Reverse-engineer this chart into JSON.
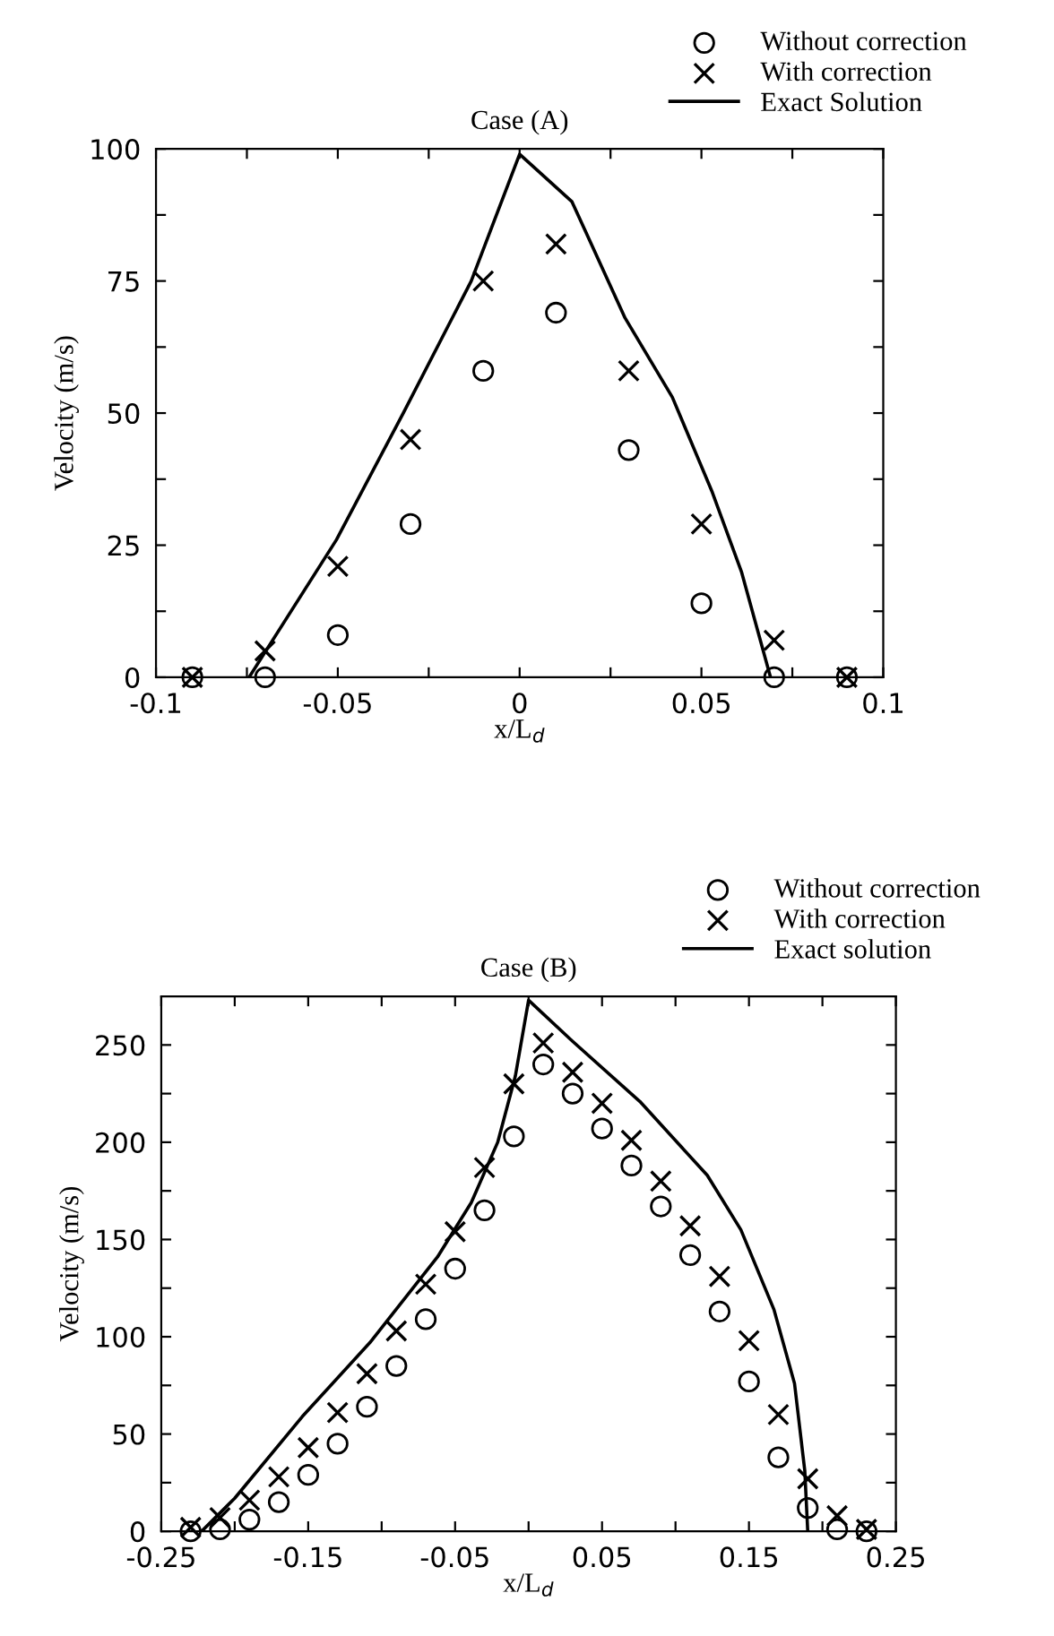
{
  "chart_data": [
    {
      "type": "scatter",
      "title": "Case (A)",
      "xlabel": "x/L$_{d}$",
      "ylabel": "Velocity (m/s)",
      "xlim": [
        -0.1,
        0.1
      ],
      "xticks": [
        -0.1,
        {
          "value": -0.075,
          "label": null
        },
        -0.05,
        {
          "value": -0.025,
          "label": null
        },
        0,
        {
          "value": 0.025,
          "label": null
        },
        0.05,
        {
          "value": 0.075,
          "label": null
        },
        0.1
      ],
      "ylim": [
        0,
        100
      ],
      "yticks": [
        0,
        {
          "value": 12.5,
          "label": null
        },
        25,
        {
          "value": 37.5,
          "label": null
        },
        50,
        {
          "value": 62.5,
          "label": null
        },
        75,
        {
          "value": 87.5,
          "label": null
        },
        100
      ],
      "grid": false,
      "legend": "top right",
      "x": [
        -0.09,
        -0.07,
        -0.05,
        -0.03,
        -0.01,
        0.01,
        0.03,
        0.05,
        0.07,
        0.09
      ],
      "series": [
        {
          "name": "Without correction",
          "color": "#000000",
          "marker": "circle",
          "values": [
            0,
            0,
            8,
            29,
            58,
            69,
            43,
            14,
            0,
            0
          ]
        },
        {
          "name": "With correction",
          "color": "#000000",
          "marker": "cross",
          "values": [
            0,
            5,
            21,
            45,
            75,
            82,
            58,
            29,
            7,
            0
          ]
        },
        {
          "name": "Exact Solution",
          "type": "line",
          "color": "#000000",
          "line_style": "solid",
          "x": [
            -0.0744,
            -0.0504,
            -0.032,
            -0.0133,
            0,
            0.0144,
            0.029,
            0.042,
            0.053,
            0.061,
            0.069
          ],
          "values": [
            0,
            26,
            50,
            75,
            99,
            90,
            68,
            53,
            35,
            20,
            0
          ]
        }
      ]
    },
    {
      "type": "scatter",
      "title": "Case (B)",
      "xlabel": "x/L$_{d}$",
      "ylabel": "Velocity (m/s)",
      "xlim": [
        -0.25,
        0.25
      ],
      "xticks": [
        -0.25,
        {
          "value": -0.2,
          "label": null
        },
        -0.15,
        {
          "value": -0.1,
          "label": null
        },
        -0.05,
        {
          "value": 0,
          "label": null
        },
        0.05,
        {
          "value": 0.1,
          "label": null
        },
        0.15,
        {
          "value": 0.2,
          "label": null
        },
        0.25
      ],
      "ylim": [
        0,
        275
      ],
      "yticks": [
        0,
        {
          "value": 25,
          "label": null
        },
        50,
        {
          "value": 75,
          "label": null
        },
        100,
        {
          "value": 125,
          "label": null
        },
        150,
        {
          "value": 175,
          "label": null
        },
        200,
        {
          "value": 225,
          "label": null
        },
        250
      ],
      "grid": false,
      "legend": "top right",
      "x": [
        -0.23,
        -0.21,
        -0.19,
        -0.17,
        -0.15,
        -0.13,
        -0.11,
        -0.09,
        -0.07,
        -0.05,
        -0.03,
        -0.01,
        0.01,
        0.03,
        0.05,
        0.07,
        0.09,
        0.11,
        0.13,
        0.15,
        0.17,
        0.19,
        0.21,
        0.23
      ],
      "series": [
        {
          "name": "Without correction",
          "color": "#000000",
          "marker": "circle",
          "values": [
            0,
            1,
            6,
            15,
            29,
            45,
            64,
            85,
            109,
            135,
            165,
            203,
            240,
            225,
            207,
            188,
            167,
            142,
            113,
            77,
            38,
            12,
            1,
            0
          ]
        },
        {
          "name": "With correction",
          "color": "#000000",
          "marker": "cross",
          "values": [
            2,
            7,
            16,
            28,
            43,
            61,
            81,
            103,
            127,
            154,
            187,
            230,
            251,
            236,
            220,
            201,
            180,
            157,
            131,
            98,
            60,
            27,
            8,
            1
          ]
        },
        {
          "name": "Exact solution",
          "type": "line",
          "color": "#000000",
          "line_style": "solid",
          "x": [
            -0.2225,
            -0.2,
            -0.154,
            -0.108,
            -0.062,
            -0.039,
            -0.021,
            -0.009,
            0,
            0.0298,
            0.0757,
            0.1216,
            0.1445,
            0.167,
            0.181,
            0.188,
            0.19
          ],
          "values": [
            0,
            17,
            59,
            97,
            141,
            169,
            200,
            234,
            273,
            252,
            221,
            183,
            155,
            114,
            76,
            31,
            0
          ]
        }
      ]
    }
  ]
}
